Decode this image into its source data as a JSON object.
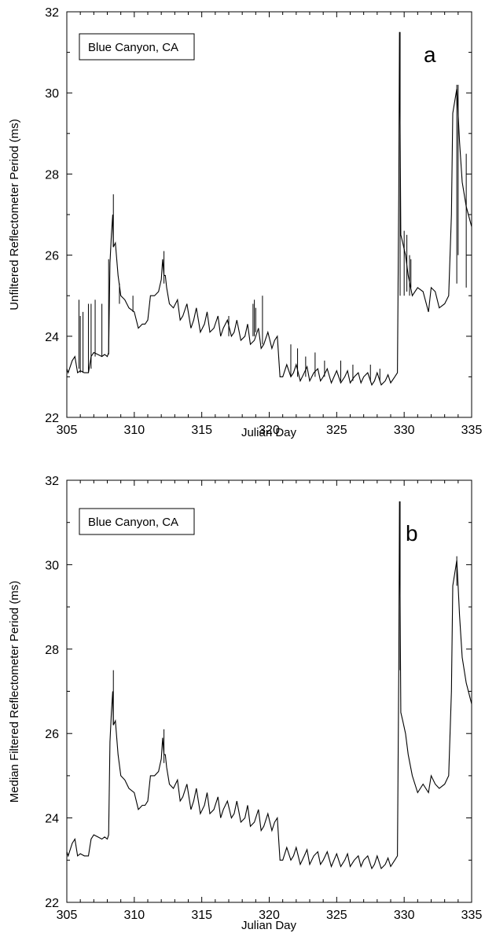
{
  "chart_data": [
    {
      "type": "line",
      "panel_label": "a",
      "legend": "Blue Canyon, CA",
      "xlabel": "Julian Day",
      "ylabel": "Unfiltered Reflectometer Period (ms)",
      "xlim": [
        305,
        335
      ],
      "ylim": [
        22,
        32
      ],
      "xticks": [
        305,
        310,
        315,
        320,
        325,
        330,
        335
      ],
      "yticks": [
        22,
        24,
        26,
        28,
        30,
        32
      ],
      "x_tick_labels": [
        "305",
        "310",
        "315",
        "320",
        "325",
        "330",
        "335"
      ],
      "y_tick_labels": [
        "22",
        "24",
        "26",
        "28",
        "30",
        "32"
      ],
      "grid": false,
      "series": [
        {
          "x": [
            305.0,
            305.1,
            305.4,
            305.6,
            305.8,
            306.0,
            306.3,
            306.6,
            306.8,
            307.0,
            307.3,
            307.6,
            307.8,
            308.0,
            308.1,
            308.2,
            308.3,
            308.4,
            308.45,
            308.6,
            308.8,
            309.0,
            309.3,
            309.6,
            310.0,
            310.3,
            310.6,
            310.8,
            311.0,
            311.2,
            311.5,
            311.8,
            312.0,
            312.1,
            312.2,
            312.3,
            312.4,
            312.6,
            312.9,
            313.2,
            313.4,
            313.6,
            313.9,
            314.2,
            314.4,
            314.6,
            314.9,
            315.2,
            315.4,
            315.6,
            315.9,
            316.2,
            316.4,
            316.6,
            316.9,
            317.2,
            317.4,
            317.6,
            317.9,
            318.2,
            318.4,
            318.6,
            318.9,
            319.2,
            319.4,
            319.6,
            319.9,
            320.2,
            320.4,
            320.6,
            320.8,
            321.0,
            321.3,
            321.6,
            321.8,
            322.0,
            322.3,
            322.6,
            322.8,
            323.0,
            323.3,
            323.6,
            323.8,
            324.0,
            324.3,
            324.6,
            324.8,
            325.0,
            325.3,
            325.6,
            325.8,
            326.0,
            326.3,
            326.6,
            326.8,
            327.0,
            327.3,
            327.6,
            327.8,
            328.0,
            328.3,
            328.6,
            328.8,
            329.0,
            329.3,
            329.5,
            329.6,
            329.65,
            329.75,
            329.9,
            330.1,
            330.3,
            330.6,
            331.0,
            331.4,
            331.8,
            332.0,
            332.3,
            332.6,
            333.0,
            333.3,
            333.5,
            333.6,
            333.8,
            333.9,
            334.0,
            334.1,
            334.3,
            334.6,
            335.0
          ],
          "y": [
            23.2,
            23.1,
            23.4,
            23.5,
            23.1,
            23.15,
            23.1,
            23.1,
            23.5,
            23.6,
            23.55,
            23.5,
            23.55,
            23.5,
            23.6,
            25.8,
            26.5,
            27.0,
            26.2,
            26.3,
            25.5,
            25.0,
            24.9,
            24.7,
            24.6,
            24.2,
            24.3,
            24.3,
            24.4,
            25.0,
            25.0,
            25.1,
            25.4,
            25.9,
            25.5,
            25.5,
            25.2,
            24.8,
            24.7,
            24.9,
            24.4,
            24.5,
            24.8,
            24.2,
            24.4,
            24.7,
            24.1,
            24.3,
            24.6,
            24.1,
            24.2,
            24.5,
            24.0,
            24.2,
            24.4,
            24.0,
            24.1,
            24.4,
            23.9,
            24.0,
            24.3,
            23.8,
            23.9,
            24.2,
            23.7,
            23.8,
            24.1,
            23.7,
            23.9,
            24.0,
            23.0,
            23.0,
            23.3,
            23.0,
            23.1,
            23.3,
            22.9,
            23.1,
            23.25,
            22.9,
            23.1,
            23.2,
            22.9,
            23.0,
            23.2,
            22.85,
            23.0,
            23.15,
            22.85,
            23.0,
            23.15,
            22.85,
            23.0,
            23.1,
            22.85,
            23.0,
            23.1,
            22.8,
            22.9,
            23.1,
            22.8,
            22.9,
            23.05,
            22.85,
            23.0,
            23.1,
            27.5,
            31.5,
            26.5,
            26.3,
            26.0,
            25.5,
            25.0,
            25.2,
            25.1,
            24.6,
            25.2,
            25.1,
            24.7,
            24.8,
            25.0,
            27.0,
            29.5,
            29.9,
            30.1,
            29.5,
            28.8,
            27.8,
            27.2,
            26.7
          ]
        }
      ],
      "spikes": [
        [
          305.9,
          23.2,
          24.9
        ],
        [
          306.0,
          23.1,
          24.5
        ],
        [
          306.2,
          23.1,
          24.6
        ],
        [
          306.6,
          23.1,
          24.8
        ],
        [
          306.8,
          23.2,
          24.8
        ],
        [
          307.1,
          23.5,
          24.9
        ],
        [
          307.6,
          23.5,
          24.8
        ],
        [
          308.1,
          23.55,
          25.9
        ],
        [
          308.45,
          26.2,
          27.5
        ],
        [
          308.9,
          25.3,
          24.8
        ],
        [
          309.9,
          24.6,
          25.0
        ],
        [
          312.2,
          25.3,
          26.1
        ],
        [
          317.0,
          24.0,
          24.5
        ],
        [
          318.8,
          24.0,
          24.8
        ],
        [
          318.9,
          24.0,
          24.9
        ],
        [
          319.0,
          24.1,
          24.7
        ],
        [
          319.5,
          23.8,
          25.0
        ],
        [
          321.6,
          23.0,
          23.8
        ],
        [
          322.1,
          23.0,
          23.7
        ],
        [
          322.7,
          23.0,
          23.5
        ],
        [
          323.4,
          23.0,
          23.6
        ],
        [
          324.1,
          23.0,
          23.4
        ],
        [
          325.3,
          22.9,
          23.4
        ],
        [
          326.2,
          22.9,
          23.3
        ],
        [
          327.5,
          22.9,
          23.3
        ],
        [
          328.2,
          22.9,
          23.2
        ],
        [
          329.7,
          25.0,
          31.5
        ],
        [
          330.0,
          25.0,
          26.6
        ],
        [
          330.2,
          25.1,
          26.5
        ],
        [
          330.4,
          25.0,
          26.0
        ],
        [
          330.5,
          25.2,
          25.9
        ],
        [
          333.9,
          25.3,
          30.2
        ],
        [
          334.0,
          26.0,
          30.2
        ],
        [
          334.6,
          25.2,
          28.5
        ]
      ]
    },
    {
      "type": "line",
      "panel_label": "b",
      "legend": "Blue Canyon, CA",
      "xlabel": "Julian Day",
      "ylabel": "Median Filtered Reflectometer Period (ms)",
      "xlim": [
        305,
        335
      ],
      "ylim": [
        22,
        32
      ],
      "xticks": [
        305,
        310,
        315,
        320,
        325,
        330,
        335
      ],
      "yticks": [
        22,
        24,
        26,
        28,
        30,
        32
      ],
      "x_tick_labels": [
        "305",
        "310",
        "315",
        "320",
        "325",
        "330",
        "335"
      ],
      "y_tick_labels": [
        "22",
        "24",
        "26",
        "28",
        "30",
        "32"
      ],
      "grid": false,
      "series": [
        {
          "x": [
            305.0,
            305.1,
            305.4,
            305.6,
            305.8,
            306.0,
            306.3,
            306.6,
            306.8,
            307.0,
            307.3,
            307.6,
            307.8,
            308.0,
            308.1,
            308.2,
            308.3,
            308.4,
            308.45,
            308.6,
            308.8,
            309.0,
            309.3,
            309.6,
            310.0,
            310.3,
            310.6,
            310.8,
            311.0,
            311.2,
            311.5,
            311.8,
            312.0,
            312.1,
            312.2,
            312.3,
            312.4,
            312.6,
            312.9,
            313.2,
            313.4,
            313.6,
            313.9,
            314.2,
            314.4,
            314.6,
            314.9,
            315.2,
            315.4,
            315.6,
            315.9,
            316.2,
            316.4,
            316.6,
            316.9,
            317.2,
            317.4,
            317.6,
            317.9,
            318.2,
            318.4,
            318.6,
            318.9,
            319.2,
            319.4,
            319.6,
            319.9,
            320.2,
            320.4,
            320.6,
            320.8,
            321.0,
            321.3,
            321.6,
            321.8,
            322.0,
            322.3,
            322.6,
            322.8,
            323.0,
            323.3,
            323.6,
            323.8,
            324.0,
            324.3,
            324.6,
            324.8,
            325.0,
            325.3,
            325.6,
            325.8,
            326.0,
            326.3,
            326.6,
            326.8,
            327.0,
            327.3,
            327.6,
            327.8,
            328.0,
            328.3,
            328.6,
            328.8,
            329.0,
            329.3,
            329.5,
            329.6,
            329.65,
            329.75,
            329.9,
            330.1,
            330.3,
            330.6,
            331.0,
            331.4,
            331.8,
            332.0,
            332.3,
            332.6,
            333.0,
            333.3,
            333.5,
            333.6,
            333.8,
            333.9,
            334.0,
            334.1,
            334.3,
            334.6,
            335.0
          ],
          "y": [
            23.2,
            23.1,
            23.4,
            23.5,
            23.1,
            23.15,
            23.1,
            23.1,
            23.5,
            23.6,
            23.55,
            23.5,
            23.55,
            23.5,
            23.6,
            25.8,
            26.5,
            27.0,
            26.2,
            26.3,
            25.5,
            25.0,
            24.9,
            24.7,
            24.6,
            24.2,
            24.3,
            24.3,
            24.4,
            25.0,
            25.0,
            25.1,
            25.4,
            25.9,
            25.5,
            25.5,
            25.2,
            24.8,
            24.7,
            24.9,
            24.4,
            24.5,
            24.8,
            24.2,
            24.4,
            24.7,
            24.1,
            24.3,
            24.6,
            24.1,
            24.2,
            24.5,
            24.0,
            24.2,
            24.4,
            24.0,
            24.1,
            24.4,
            23.9,
            24.0,
            24.3,
            23.8,
            23.9,
            24.2,
            23.7,
            23.8,
            24.1,
            23.7,
            23.9,
            24.0,
            23.0,
            23.0,
            23.3,
            23.0,
            23.1,
            23.3,
            22.9,
            23.1,
            23.25,
            22.9,
            23.1,
            23.2,
            22.9,
            23.0,
            23.2,
            22.85,
            23.0,
            23.15,
            22.85,
            23.0,
            23.15,
            22.85,
            23.0,
            23.1,
            22.85,
            23.0,
            23.1,
            22.8,
            22.9,
            23.1,
            22.8,
            22.9,
            23.05,
            22.85,
            23.0,
            23.1,
            27.5,
            31.5,
            26.5,
            26.3,
            26.0,
            25.5,
            25.0,
            24.6,
            24.8,
            24.6,
            25.0,
            24.8,
            24.7,
            24.8,
            25.0,
            27.0,
            29.5,
            29.9,
            30.1,
            29.5,
            28.8,
            27.8,
            27.2,
            26.7
          ]
        }
      ],
      "spikes": [
        [
          308.45,
          26.2,
          27.5
        ],
        [
          312.2,
          25.3,
          26.1
        ],
        [
          329.7,
          27.5,
          31.5
        ],
        [
          333.9,
          29.5,
          30.2
        ]
      ]
    }
  ]
}
